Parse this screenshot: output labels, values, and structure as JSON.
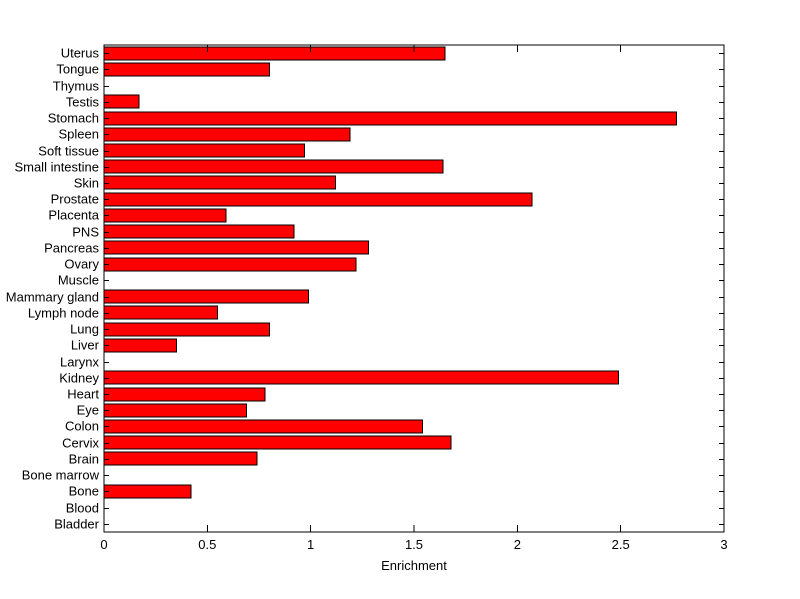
{
  "chart_data": {
    "type": "bar",
    "orientation": "horizontal",
    "title": "",
    "xlabel": "Enrichment",
    "ylabel": "",
    "xlim": [
      0,
      3
    ],
    "xticks": [
      0,
      0.5,
      1,
      1.5,
      2,
      2.5,
      3
    ],
    "xtick_labels": [
      "0",
      "0.5",
      "1",
      "1.5",
      "2",
      "2.5",
      "3"
    ],
    "grid": false,
    "legend": null,
    "category_order": "top-to-bottom",
    "categories": [
      "Uterus",
      "Tongue",
      "Thymus",
      "Testis",
      "Stomach",
      "Spleen",
      "Soft tissue",
      "Small intestine",
      "Skin",
      "Prostate",
      "Placenta",
      "PNS",
      "Pancreas",
      "Ovary",
      "Muscle",
      "Mammary gland",
      "Lymph node",
      "Lung",
      "Liver",
      "Larynx",
      "Kidney",
      "Heart",
      "Eye",
      "Colon",
      "Cervix",
      "Brain",
      "Bone marrow",
      "Bone",
      "Blood",
      "Bladder"
    ],
    "values": [
      1.65,
      0.8,
      0,
      0.17,
      2.77,
      1.19,
      0.97,
      1.64,
      1.12,
      2.07,
      0.59,
      0.92,
      1.28,
      1.22,
      0,
      0.99,
      0.55,
      0.8,
      0.35,
      0,
      2.49,
      0.78,
      0.69,
      1.54,
      1.68,
      0.74,
      0,
      0.42,
      0,
      0
    ],
    "colors": {
      "bar_fill": "#ff0000",
      "bar_edge": "#000000",
      "axis": "#000000",
      "text": "#000000",
      "background": "#ffffff"
    }
  }
}
